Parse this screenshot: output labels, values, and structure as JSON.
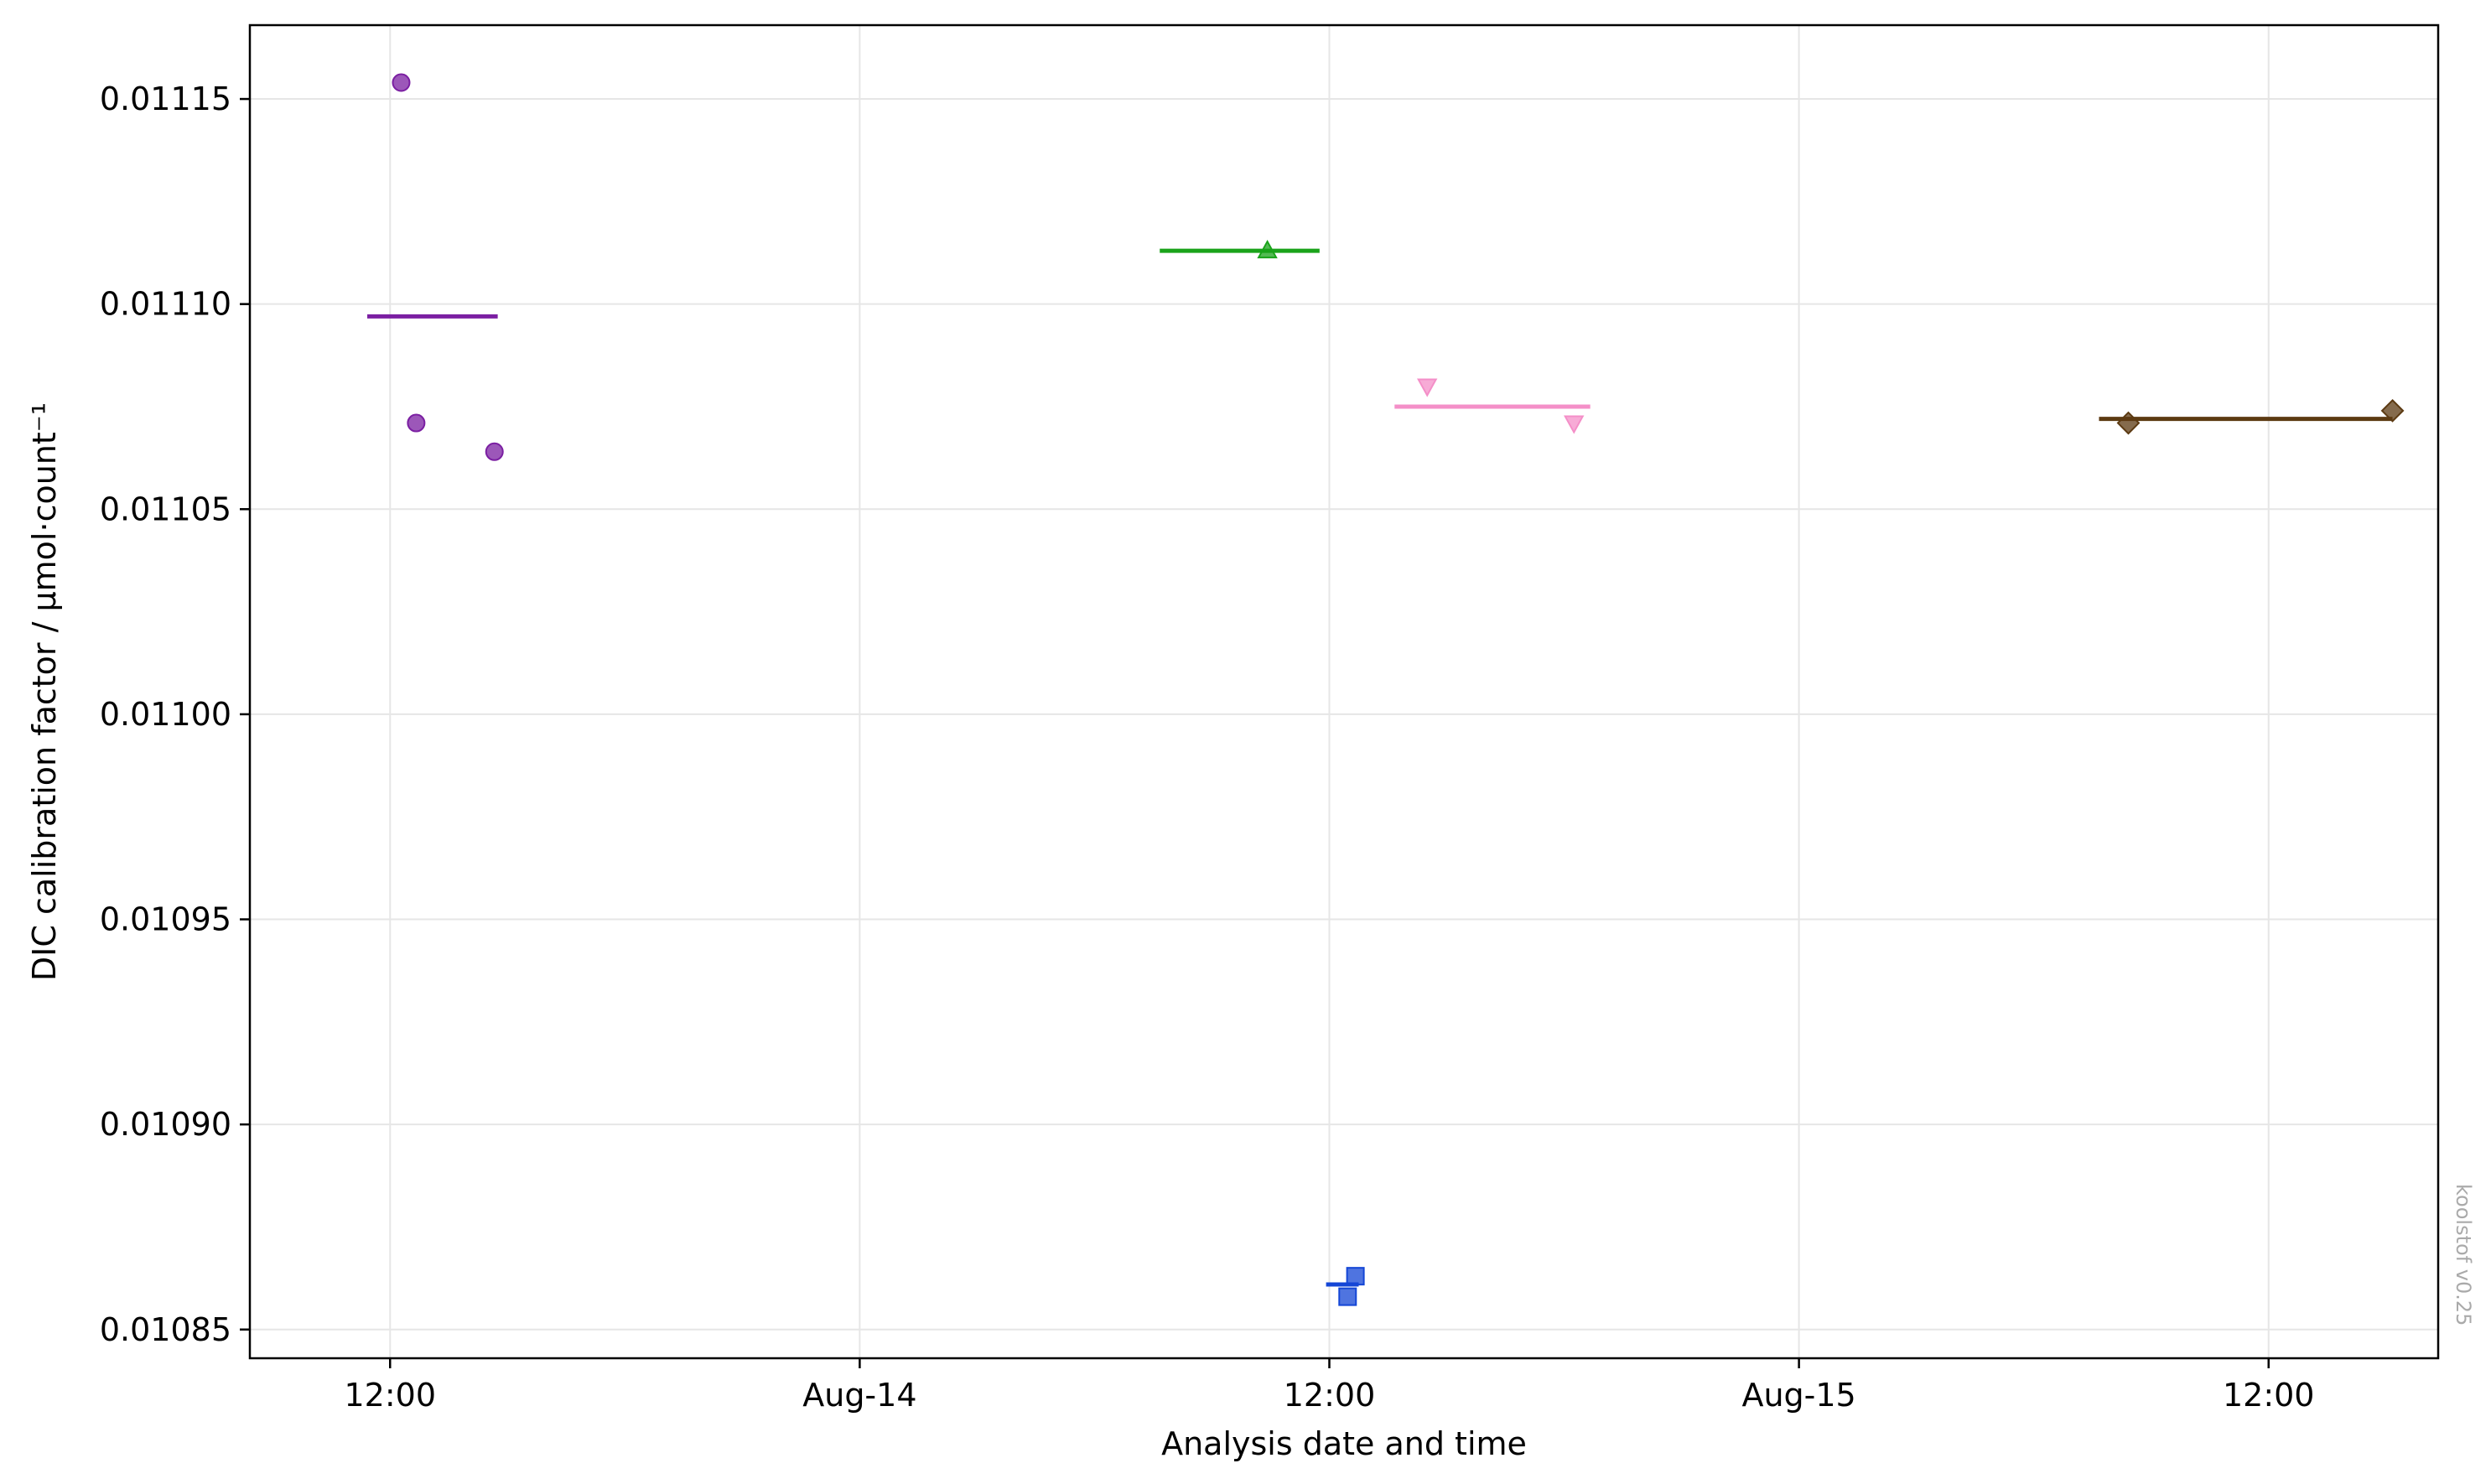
{
  "chart_data": {
    "type": "scatter",
    "title": "",
    "xlabel": "Analysis date and time",
    "ylabel": "DIC calibration factor / μmol·count⁻¹",
    "xlim": [
      "2021-08-13T08:25",
      "2021-08-15T16:20"
    ],
    "ylim": [
      0.010843,
      0.011168
    ],
    "x_ticks": [
      {
        "x": "2021-08-13T12:00",
        "label": "12:00"
      },
      {
        "x": "2021-08-14T00:00",
        "label": "Aug-14"
      },
      {
        "x": "2021-08-14T12:00",
        "label": "12:00"
      },
      {
        "x": "2021-08-15T00:00",
        "label": "Aug-15"
      },
      {
        "x": "2021-08-15T12:00",
        "label": "12:00"
      }
    ],
    "y_ticks": [
      {
        "y": 0.01085,
        "label": "0.01085"
      },
      {
        "y": 0.0109,
        "label": "0.01090"
      },
      {
        "y": 0.01095,
        "label": "0.01095"
      },
      {
        "y": 0.011,
        "label": "0.01100"
      },
      {
        "y": 0.01105,
        "label": "0.01105"
      },
      {
        "y": 0.0111,
        "label": "0.01110"
      },
      {
        "y": 0.01115,
        "label": "0.01115"
      }
    ],
    "grid": true,
    "legend": "none",
    "series": [
      {
        "color": "#7b1fa2",
        "marker": "circle",
        "points": [
          {
            "x": "2021-08-13T12:17",
            "y": 0.011154
          },
          {
            "x": "2021-08-13T12:40",
            "y": 0.011071
          },
          {
            "x": "2021-08-13T14:40",
            "y": 0.011064
          }
        ],
        "mean": 0.011097,
        "mean_span": [
          "2021-08-13T11:25",
          "2021-08-13T14:45"
        ]
      },
      {
        "color": "#1aa31a",
        "marker": "triangle-up",
        "points": [
          {
            "x": "2021-08-14T10:25",
            "y": 0.011113
          }
        ],
        "mean": 0.011113,
        "mean_span": [
          "2021-08-14T07:40",
          "2021-08-14T11:45"
        ]
      },
      {
        "color": "#1446d6",
        "marker": "square",
        "points": [
          {
            "x": "2021-08-14T12:28",
            "y": 0.010858
          },
          {
            "x": "2021-08-14T12:40",
            "y": 0.010863
          }
        ],
        "mean": 0.010861,
        "mean_span": [
          "2021-08-14T11:55",
          "2021-08-14T12:45"
        ]
      },
      {
        "color": "#f48fc8",
        "marker": "triangle-down",
        "points": [
          {
            "x": "2021-08-14T14:30",
            "y": 0.01108
          },
          {
            "x": "2021-08-14T18:15",
            "y": 0.011071
          }
        ],
        "mean": 0.011075,
        "mean_span": [
          "2021-08-14T13:40",
          "2021-08-14T18:40"
        ]
      },
      {
        "color": "#5c3a12",
        "marker": "diamond",
        "points": [
          {
            "x": "2021-08-15T08:25",
            "y": 0.011071
          },
          {
            "x": "2021-08-15T15:10",
            "y": 0.011074
          }
        ],
        "mean": 0.011072,
        "mean_span": [
          "2021-08-15T07:40",
          "2021-08-15T15:10"
        ]
      }
    ]
  },
  "watermark": "koolstof v0.25"
}
